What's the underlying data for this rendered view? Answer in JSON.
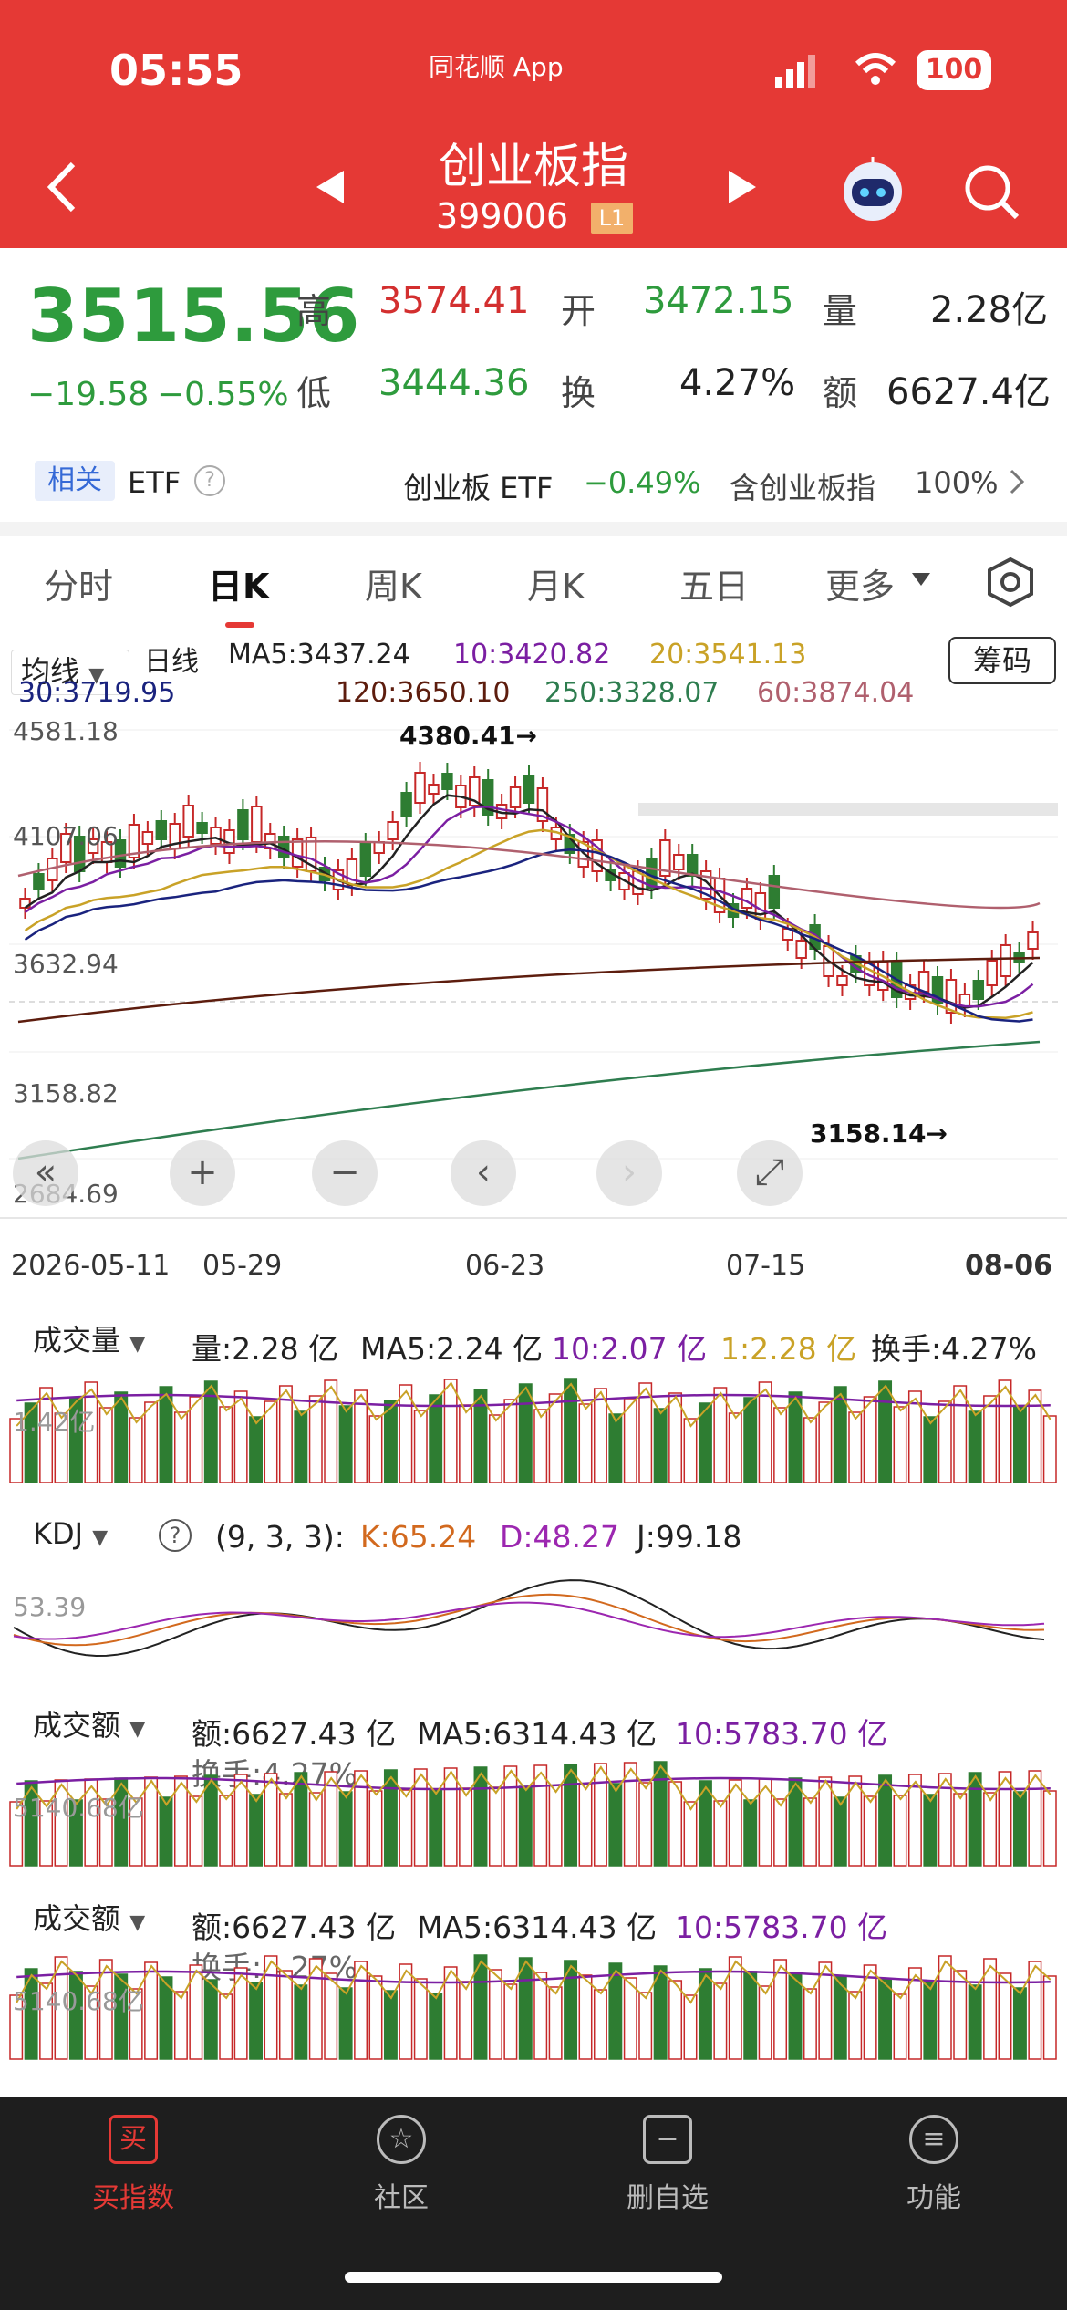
{
  "status": {
    "time": "05:55",
    "app": "同花顺 App",
    "battery": "100"
  },
  "header": {
    "title": "创业板指",
    "code": "399006",
    "level": "L1"
  },
  "quote": {
    "price": "3515.56",
    "change": "−19.58",
    "change_pct": "−0.55%",
    "high_label": "高",
    "high": "3574.41",
    "open_label": "开",
    "open": "3472.15",
    "vol_label": "量",
    "vol": "2.28亿",
    "low_label": "低",
    "low": "3444.36",
    "turn_label": "换",
    "turn": "4.27%",
    "amt_label": "额",
    "amt": "6627.4亿"
  },
  "related": {
    "badge": "相关",
    "etf": "ETF",
    "help": "?",
    "fund_name": "创业板 ETF",
    "fund_chg": "−0.49%",
    "contains_label": "含创业板指",
    "contains_pct": "100%"
  },
  "tabs": [
    "分时",
    "日K",
    "周K",
    "月K",
    "五日",
    "更多"
  ],
  "ma_legend": {
    "dropdown": "均线",
    "period": "日线",
    "ma5": "MA5:3437.24",
    "ma10": "10:3420.82",
    "ma20": "20:3541.13",
    "ma30": "30:3719.95",
    "ma120": "120:3650.10",
    "ma250": "250:3328.07",
    "ma60": "60:3874.04",
    "chip_button": "筹码"
  },
  "kline": {
    "y_labels": [
      "4581.18",
      "4107.06",
      "3632.94",
      "3158.82",
      "2684.69"
    ],
    "x_labels": [
      "2026-05-11",
      "05-29",
      "06-23",
      "07-15",
      "08-06"
    ],
    "high_marker": "4380.41→",
    "low_marker": "3158.14→",
    "colors": {
      "up": "#c62828",
      "down": "#2e7d32",
      "ma5": "#222222",
      "ma10": "#7b1fa2",
      "ma20": "#c9a227",
      "ma30": "#1a237e",
      "ma120": "#5d1d0e",
      "ma250": "#2e7d4f",
      "ma60": "#b0606e"
    }
  },
  "volume_panel": {
    "dropdown": "成交量",
    "vol": "量:2.28 亿",
    "ma5": "MA5:2.24 亿",
    "ma10": "10:2.07 亿",
    "ma1": "1:2.28 亿",
    "turnover": "换手:4.27%",
    "y_label": "1.42亿"
  },
  "kdj_panel": {
    "dropdown": "KDJ",
    "help": "?",
    "params": "(9, 3, 3):",
    "k": "K:65.24",
    "d": "D:48.27",
    "j": "J:99.18",
    "y_label": "53.39"
  },
  "amount_panel_1": {
    "dropdown": "成交额",
    "amt": "额:6627.43 亿",
    "ma5": "MA5:6314.43 亿",
    "ma10": "10:5783.70 亿",
    "turnover": "换手:4.27%",
    "y_label": "5140.68亿"
  },
  "amount_panel_2": {
    "dropdown": "成交额",
    "amt": "额:6627.43 亿",
    "ma5": "MA5:6314.43 亿",
    "ma10": "10:5783.70 亿",
    "turnover": "换手:4.27%",
    "y_label": "5140.68亿"
  },
  "nav": [
    {
      "label": "买指数",
      "icon": "买"
    },
    {
      "label": "社区",
      "icon": "☆"
    },
    {
      "label": "删自选",
      "icon": "−"
    },
    {
      "label": "功能",
      "icon": "≡"
    }
  ]
}
